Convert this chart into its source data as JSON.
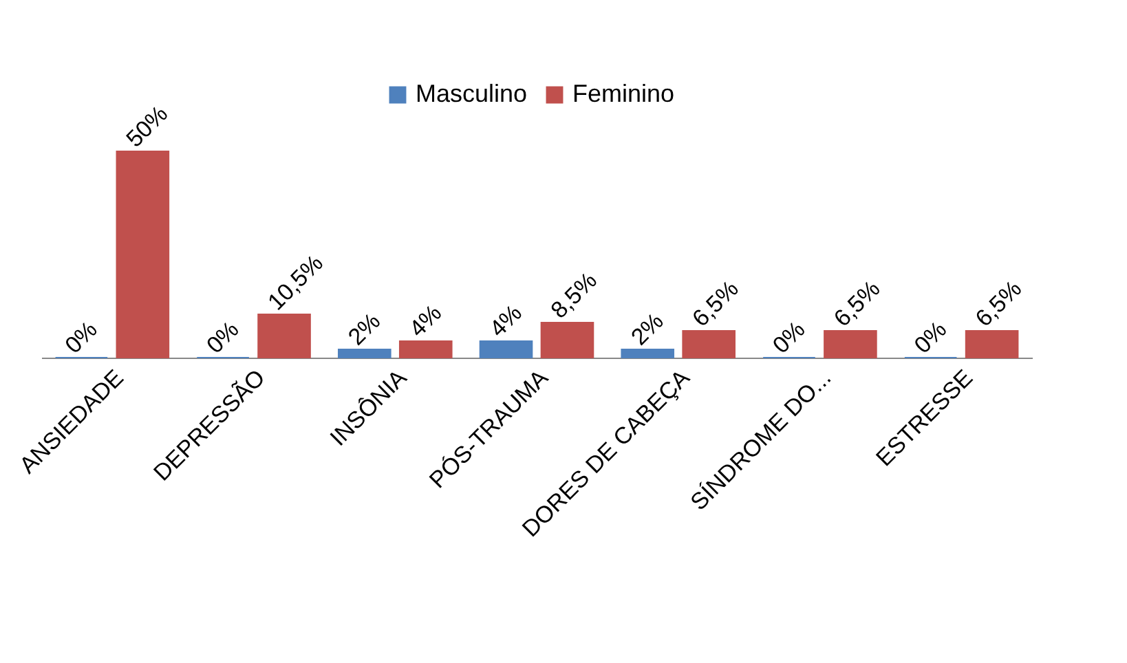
{
  "chart_data": {
    "type": "bar",
    "categories": [
      "ANSIEDADE",
      "DEPRESSÃO",
      "INSÔNIA",
      "PÓS-TRAUMA",
      "DORES DE CABEÇA",
      "SÍNDROME DO...",
      "ESTRESSE"
    ],
    "series": [
      {
        "name": "Masculino",
        "color": "#4f81bd",
        "values": [
          0,
          0,
          2,
          4,
          2,
          0,
          0
        ],
        "value_labels": [
          "0%",
          "0%",
          "2%",
          "4%",
          "2%",
          "0%",
          "0%"
        ]
      },
      {
        "name": "Feminino",
        "color": "#c0504d",
        "values": [
          50,
          10.5,
          4,
          8.5,
          6.5,
          6.5,
          6.5
        ],
        "value_labels": [
          "50%",
          "10,5%",
          "4%",
          "8,5%",
          "6,5%",
          "6,5%",
          "6,5%"
        ]
      }
    ],
    "legend": "top"
  }
}
